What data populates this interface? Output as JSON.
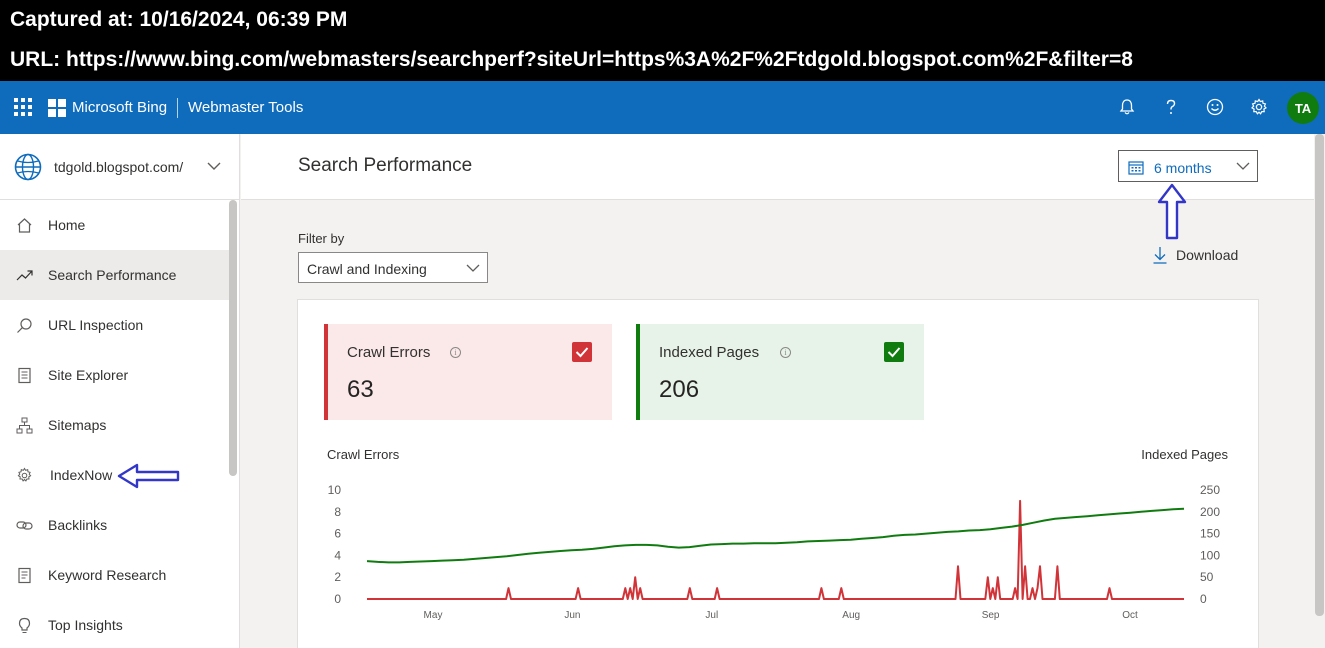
{
  "capture": {
    "captured_at": "Captured at: 10/16/2024, 06:39 PM",
    "url": "URL: https://www.bing.com/webmasters/searchperf?siteUrl=https%3A%2F%2Ftdgold.blogspot.com%2F&filter=8"
  },
  "topbar": {
    "brand": "Microsoft Bing",
    "product": "Webmaster Tools",
    "avatar_initials": "TA",
    "icons": [
      "apps-waffle-icon",
      "bell-icon",
      "help-icon",
      "feedback-smiley-icon",
      "settings-gear-icon"
    ]
  },
  "sidebar": {
    "site": "tdgold.blogspot.com/",
    "items": [
      {
        "label": "Home",
        "icon": "home-icon"
      },
      {
        "label": "Search Performance",
        "icon": "trend-icon",
        "active": true
      },
      {
        "label": "URL Inspection",
        "icon": "search-icon"
      },
      {
        "label": "Site Explorer",
        "icon": "document-icon"
      },
      {
        "label": "Sitemaps",
        "icon": "sitemap-icon"
      },
      {
        "label": "IndexNow",
        "icon": "gear-icon"
      },
      {
        "label": "Backlinks",
        "icon": "link-icon"
      },
      {
        "label": "Keyword Research",
        "icon": "document-list-icon"
      },
      {
        "label": "Top Insights",
        "icon": "lightbulb-icon"
      }
    ]
  },
  "main": {
    "title": "Search Performance",
    "date_range": "6 months",
    "filter_label": "Filter by",
    "filter_value": "Crawl and Indexing",
    "download_label": "Download"
  },
  "metrics": {
    "crawl_errors": {
      "title": "Crawl Errors",
      "value": "63",
      "color": "#d13438",
      "checked": true
    },
    "indexed_pages": {
      "title": "Indexed Pages",
      "value": "206",
      "color": "#107c10",
      "checked": true
    }
  },
  "chart": {
    "left_axis_title": "Crawl Errors",
    "right_axis_title": "Indexed Pages"
  },
  "chart_data": {
    "type": "line",
    "x_ticks": [
      "May",
      "Jun",
      "Jul",
      "Aug",
      "Sep",
      "Oct"
    ],
    "y_left_ticks": [
      "10",
      "8",
      "6",
      "4",
      "2",
      "0"
    ],
    "y_right_ticks": [
      "250",
      "200",
      "150",
      "100",
      "50",
      "0"
    ],
    "ylim_left": [
      0,
      10
    ],
    "ylim_right": [
      0,
      250
    ],
    "series": [
      {
        "name": "Crawl Errors",
        "axis": "left",
        "color": "#d13438",
        "values": [
          0,
          0,
          0,
          0,
          0,
          0,
          0,
          0,
          0,
          0,
          0,
          0,
          0,
          0,
          0,
          0,
          0,
          0,
          0,
          0,
          0,
          0,
          0,
          0,
          0,
          0,
          0,
          0,
          0,
          0,
          0,
          0,
          0,
          0,
          0,
          0,
          0,
          0,
          0,
          0,
          0,
          0,
          0,
          0,
          0,
          0,
          0,
          0,
          0,
          0,
          0,
          0,
          0,
          0,
          0,
          0,
          0,
          1,
          0,
          0,
          0,
          0,
          0,
          0,
          0,
          0,
          0,
          0,
          0,
          0,
          0,
          0,
          0,
          0,
          0,
          0,
          0,
          0,
          0,
          0,
          0,
          0,
          0,
          0,
          0,
          1,
          0,
          0,
          0,
          0,
          0,
          0,
          0,
          0,
          0,
          0,
          0,
          0,
          0,
          0,
          0,
          0,
          0,
          0,
          1,
          0,
          1,
          0,
          2,
          0,
          1,
          0,
          0,
          0,
          0,
          0,
          0,
          0,
          0,
          0,
          0,
          0,
          0,
          0,
          0,
          0,
          0,
          0,
          0,
          0,
          1,
          0,
          0,
          0,
          0,
          0,
          0,
          0,
          0,
          0,
          0,
          1,
          0,
          0,
          0,
          0,
          0,
          0,
          0,
          0,
          0,
          0,
          0,
          0,
          0,
          0,
          0,
          0,
          0,
          0,
          0,
          0,
          0,
          0,
          0,
          0,
          0,
          0,
          0,
          0,
          0,
          0,
          0,
          0,
          0,
          0,
          0,
          0,
          0,
          0,
          0,
          0,
          0,
          1,
          0,
          0,
          0,
          0,
          0,
          0,
          0,
          1,
          0,
          0,
          0,
          0,
          0,
          0,
          0,
          0,
          0,
          0,
          0,
          0,
          0,
          0,
          0,
          0,
          0,
          0,
          0,
          0,
          0,
          0,
          0,
          0,
          0,
          0,
          0,
          0,
          0,
          0,
          0,
          0,
          0,
          0,
          0,
          0,
          0,
          0,
          0,
          0,
          0,
          0,
          0,
          0,
          0,
          0,
          3,
          0,
          0,
          0,
          0,
          0,
          0,
          0,
          0,
          0,
          0,
          0,
          2,
          0,
          1,
          0,
          2,
          0,
          0,
          0,
          0,
          0,
          0,
          1,
          0,
          9,
          0,
          3,
          0,
          0,
          1,
          0,
          1,
          3,
          0,
          0,
          0,
          0,
          0,
          0,
          3,
          0,
          0,
          0,
          0,
          0,
          0,
          0,
          0,
          0,
          0,
          0,
          0,
          0,
          0,
          0,
          0,
          0,
          0,
          0,
          0,
          1,
          0,
          0,
          0,
          0,
          0,
          0,
          0,
          0,
          0,
          0,
          0,
          0,
          0,
          0,
          0,
          0,
          0,
          0,
          0,
          0,
          0,
          0,
          0,
          0,
          0,
          0,
          0,
          0,
          0,
          0
        ]
      },
      {
        "name": "Indexed Pages",
        "axis": "right",
        "color": "#107c10",
        "values": [
          87,
          85,
          84,
          84,
          85,
          86,
          87,
          88,
          89,
          90,
          92,
          94,
          96,
          98,
          101,
          104,
          106,
          108,
          110,
          112,
          113,
          115,
          118,
          121,
          123,
          124,
          124,
          123,
          120,
          118,
          119,
          122,
          125,
          126,
          127,
          127,
          128,
          128,
          128,
          129,
          130,
          132,
          133,
          134,
          135,
          136,
          138,
          140,
          142,
          145,
          147,
          148,
          150,
          152,
          154,
          155,
          157,
          158,
          160,
          163,
          166,
          170,
          175,
          180,
          184,
          186,
          188,
          190,
          192,
          194,
          196,
          198,
          200,
          202,
          204,
          206,
          207
        ]
      }
    ],
    "ylabel_left": "Crawl Errors",
    "ylabel_right": "Indexed Pages",
    "grid": false
  }
}
